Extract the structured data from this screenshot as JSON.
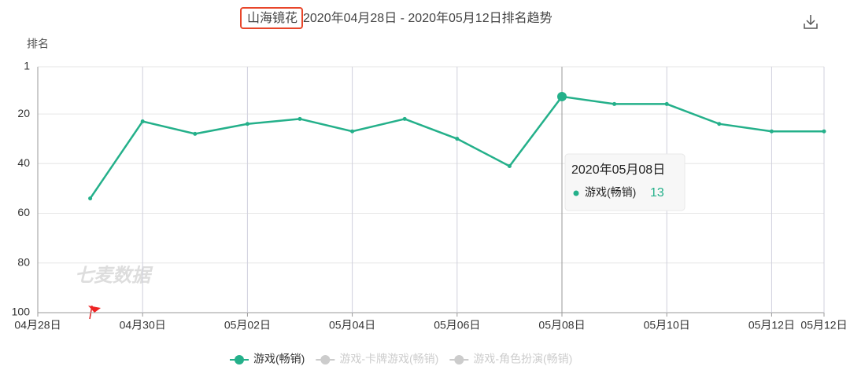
{
  "chart_data": {
    "type": "line",
    "title_highlight": "山海镜花",
    "title": "2020年04月28日 - 2020年05月12日排名趋势",
    "y_label": "排名",
    "watermark": "七麦数据",
    "categories": [
      "04月28日",
      null,
      "04月30日",
      null,
      "05月02日",
      null,
      "05月04日",
      null,
      "05月06日",
      null,
      "05月08日",
      null,
      "05月10日",
      null,
      "05月12日",
      "05月12日"
    ],
    "series": [
      {
        "name": "游戏(畅销)",
        "color": "#24b08a",
        "values": [
          null,
          54,
          23,
          28,
          24,
          22,
          27,
          22,
          30,
          41,
          13,
          16,
          16,
          24,
          27,
          27
        ]
      }
    ],
    "legend_inactive": [
      "游戏-卡牌游戏(畅销)",
      "游戏-角色扮演(畅销)"
    ],
    "ylim": [
      1,
      100
    ],
    "yticks": [
      1,
      20,
      40,
      60,
      80,
      100
    ],
    "y_inverted": true,
    "grid": true,
    "tooltip": {
      "title": "2020年05月08日",
      "index": 10
    }
  }
}
